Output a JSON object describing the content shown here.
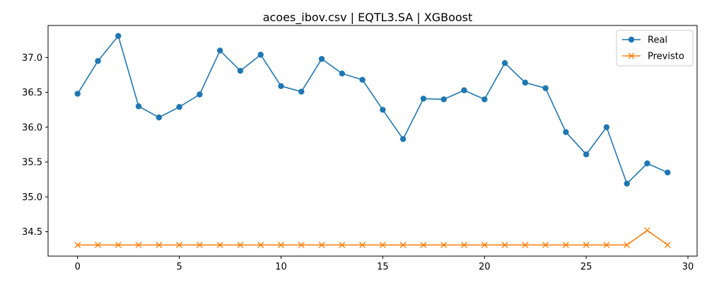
{
  "chart_data": {
    "type": "line",
    "title": "acoes_ibov.csv | EQTL3.SA | XGBoost",
    "xlabel": "",
    "ylabel": "",
    "x": [
      0,
      1,
      2,
      3,
      4,
      5,
      6,
      7,
      8,
      9,
      10,
      11,
      12,
      13,
      14,
      15,
      16,
      17,
      18,
      19,
      20,
      21,
      22,
      23,
      24,
      25,
      26,
      27,
      28,
      29
    ],
    "xticks": [
      0,
      5,
      10,
      15,
      20,
      25,
      30
    ],
    "yticks": [
      34.5,
      35.0,
      35.5,
      36.0,
      36.5,
      37.0
    ],
    "ytick_labels": [
      "34.5",
      "35.0",
      "35.5",
      "36.0",
      "36.5",
      "37.0"
    ],
    "xlim": [
      -1.45,
      30.45
    ],
    "ylim": [
      34.15,
      37.46
    ],
    "grid": false,
    "legend_position": "top-right",
    "series": [
      {
        "name": "Real",
        "color": "#1f77b4",
        "marker": "circle",
        "values": [
          36.48,
          36.95,
          37.31,
          36.3,
          36.14,
          36.29,
          36.47,
          37.1,
          36.81,
          37.04,
          36.59,
          36.51,
          36.98,
          36.77,
          36.68,
          36.25,
          35.83,
          36.41,
          36.4,
          36.53,
          36.4,
          36.92,
          36.64,
          36.56,
          35.93,
          35.61,
          36.0,
          35.19,
          35.48,
          35.35
        ]
      },
      {
        "name": "Previsto",
        "color": "#ff7f0e",
        "marker": "x",
        "values": [
          34.31,
          34.31,
          34.31,
          34.31,
          34.31,
          34.31,
          34.31,
          34.31,
          34.31,
          34.31,
          34.31,
          34.31,
          34.31,
          34.31,
          34.31,
          34.31,
          34.31,
          34.31,
          34.31,
          34.31,
          34.31,
          34.31,
          34.31,
          34.31,
          34.31,
          34.31,
          34.31,
          34.31,
          34.52,
          34.31
        ]
      }
    ]
  }
}
